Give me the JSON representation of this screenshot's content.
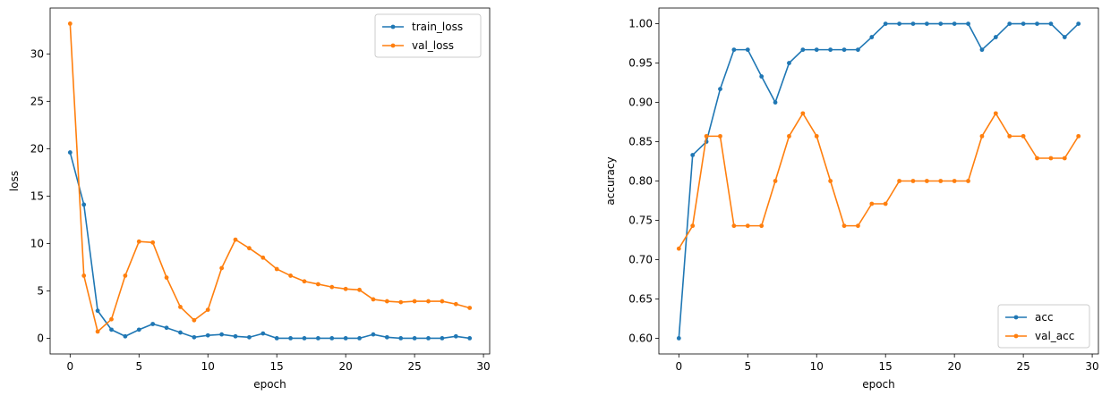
{
  "chart_data": [
    {
      "type": "line",
      "title": "",
      "xlabel": "epoch",
      "ylabel": "loss",
      "xlim": [
        -1.45,
        30.45
      ],
      "ylim": [
        -1.66,
        34.84
      ],
      "xticks": [
        0,
        5,
        10,
        15,
        20,
        25,
        30
      ],
      "xtick_labels": [
        "0",
        "5",
        "10",
        "15",
        "20",
        "25",
        "30"
      ],
      "yticks": [
        0,
        5,
        10,
        15,
        20,
        25,
        30
      ],
      "ytick_labels": [
        "0",
        "5",
        "10",
        "15",
        "20",
        "25",
        "30"
      ],
      "legend_position": "top-right",
      "x": [
        0,
        1,
        2,
        3,
        4,
        5,
        6,
        7,
        8,
        9,
        10,
        11,
        12,
        13,
        14,
        15,
        16,
        17,
        18,
        19,
        20,
        21,
        22,
        23,
        24,
        25,
        26,
        27,
        28,
        29
      ],
      "series": [
        {
          "name": "train_loss",
          "color": "#1f77b4",
          "values": [
            19.6,
            14.1,
            2.9,
            0.9,
            0.2,
            0.9,
            1.5,
            1.1,
            0.6,
            0.1,
            0.3,
            0.4,
            0.2,
            0.1,
            0.5,
            0.0,
            0.0,
            0.0,
            0.0,
            0.0,
            0.0,
            0.0,
            0.4,
            0.1,
            0.0,
            0.0,
            0.0,
            0.0,
            0.2,
            0.0
          ]
        },
        {
          "name": "val_loss",
          "color": "#ff7f0e",
          "values": [
            33.2,
            6.6,
            0.7,
            2.0,
            6.6,
            10.2,
            10.1,
            6.4,
            3.3,
            1.9,
            3.0,
            7.4,
            10.4,
            9.5,
            8.5,
            7.3,
            6.6,
            6.0,
            5.7,
            5.4,
            5.2,
            5.1,
            4.1,
            3.9,
            3.8,
            3.9,
            3.9,
            3.9,
            3.6,
            3.2
          ]
        }
      ]
    },
    {
      "type": "line",
      "title": "",
      "xlabel": "epoch",
      "ylabel": "accuracy",
      "xlim": [
        -1.45,
        30.45
      ],
      "ylim": [
        0.58,
        1.02
      ],
      "xticks": [
        0,
        5,
        10,
        15,
        20,
        25,
        30
      ],
      "xtick_labels": [
        "0",
        "5",
        "10",
        "15",
        "20",
        "25",
        "30"
      ],
      "yticks": [
        0.6,
        0.65,
        0.7,
        0.75,
        0.8,
        0.85,
        0.9,
        0.95,
        1.0
      ],
      "ytick_labels": [
        "0.60",
        "0.65",
        "0.70",
        "0.75",
        "0.80",
        "0.85",
        "0.90",
        "0.95",
        "1.00"
      ],
      "legend_position": "bottom-right",
      "x": [
        0,
        1,
        2,
        3,
        4,
        5,
        6,
        7,
        8,
        9,
        10,
        11,
        12,
        13,
        14,
        15,
        16,
        17,
        18,
        19,
        20,
        21,
        22,
        23,
        24,
        25,
        26,
        27,
        28,
        29
      ],
      "series": [
        {
          "name": "acc",
          "color": "#1f77b4",
          "values": [
            0.6,
            0.833,
            0.85,
            0.917,
            0.967,
            0.967,
            0.933,
            0.9,
            0.95,
            0.967,
            0.967,
            0.967,
            0.967,
            0.967,
            0.983,
            1.0,
            1.0,
            1.0,
            1.0,
            1.0,
            1.0,
            1.0,
            0.967,
            0.983,
            1.0,
            1.0,
            1.0,
            1.0,
            0.983,
            1.0
          ]
        },
        {
          "name": "val_acc",
          "color": "#ff7f0e",
          "values": [
            0.714,
            0.743,
            0.857,
            0.857,
            0.743,
            0.743,
            0.743,
            0.8,
            0.857,
            0.886,
            0.857,
            0.8,
            0.743,
            0.743,
            0.771,
            0.771,
            0.8,
            0.8,
            0.8,
            0.8,
            0.8,
            0.8,
            0.857,
            0.886,
            0.857,
            0.857,
            0.829,
            0.829,
            0.829,
            0.857
          ]
        }
      ]
    }
  ]
}
